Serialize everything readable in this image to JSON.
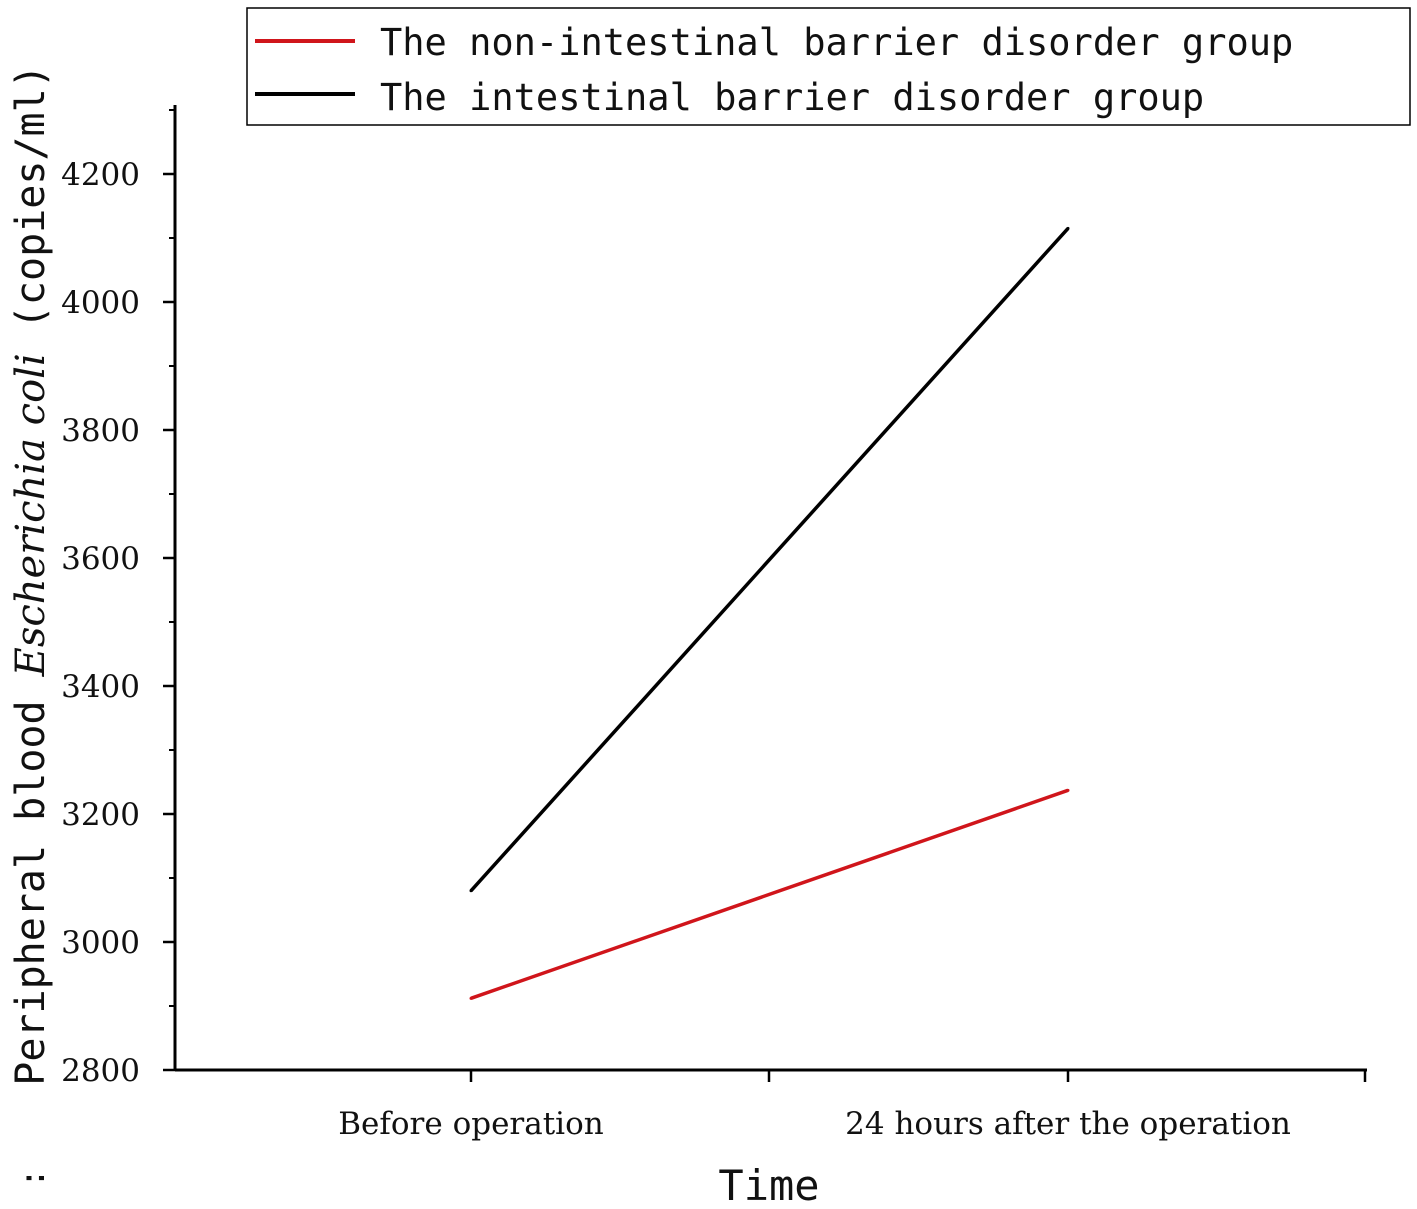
{
  "chart_data": {
    "type": "line",
    "xlabel": "Time",
    "ylabel_parts": [
      "Peripheral blood ",
      "Escherichia coli",
      "(copies/ml)"
    ],
    "ylabel_prefix": ":",
    "categories": [
      "Before operation",
      "24 hours after the operation"
    ],
    "ylim": [
      2800,
      4300
    ],
    "yticks": [
      2800,
      3000,
      3200,
      3400,
      3600,
      3800,
      4000,
      4200
    ],
    "grid": false,
    "legend_position": "top-right",
    "series": [
      {
        "name": "The non-intestinal barrier disorder group",
        "color": "#d0151b",
        "values": [
          2912,
          3237
        ]
      },
      {
        "name": "The intestinal barrier disorder group",
        "color": "#000000",
        "values": [
          3080,
          4115
        ]
      }
    ]
  }
}
